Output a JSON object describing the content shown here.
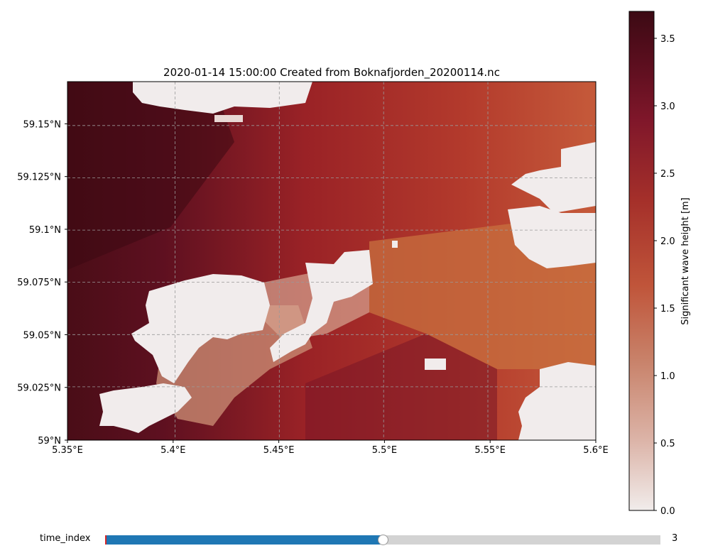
{
  "chart_data": {
    "type": "heatmap",
    "title": "2020-01-14 15:00:00 Created from Boknafjorden_20200114.nc",
    "xlabel": "",
    "ylabel": "",
    "xlim": [
      5.35,
      5.6
    ],
    "ylim": [
      59.0,
      59.17
    ],
    "x_ticks": [
      5.35,
      5.4,
      5.45,
      5.5,
      5.55,
      5.6
    ],
    "x_tick_labels": [
      "5.35°E",
      "5.4°E",
      "5.45°E",
      "5.5°E",
      "5.55°E",
      "5.6°E"
    ],
    "y_ticks": [
      59.0,
      59.025,
      59.05,
      59.075,
      59.1,
      59.125,
      59.15
    ],
    "y_tick_labels": [
      "59°N",
      "59.025°N",
      "59.05°N",
      "59.075°N",
      "59.1°N",
      "59.125°N",
      "59.15°N"
    ],
    "grid": true,
    "colorbar": {
      "label": "Significant wave height [m]",
      "range": [
        0.0,
        3.7
      ],
      "ticks": [
        0.0,
        0.5,
        1.0,
        1.5,
        2.0,
        2.5,
        3.0,
        3.5
      ],
      "tick_labels": [
        "0.0",
        "0.5",
        "1.0",
        "1.5",
        "2.0",
        "2.5",
        "3.0",
        "3.5"
      ],
      "colormap_stops": [
        "#f1eceb",
        "#dcb4a8",
        "#c8826a",
        "#c0553a",
        "#a5302a",
        "#80172a",
        "#5a0e1e",
        "#3c0a14"
      ]
    },
    "field_summary": {
      "west_open_water_m": 3.4,
      "north_channel_m": 2.8,
      "central_fjord_m": 2.4,
      "east_reach_m": 2.1,
      "sheltered_lee_m": 1.0,
      "land_value_m": 0.0
    }
  },
  "slider": {
    "label": "time_index",
    "value": "3",
    "fraction": 0.5
  }
}
